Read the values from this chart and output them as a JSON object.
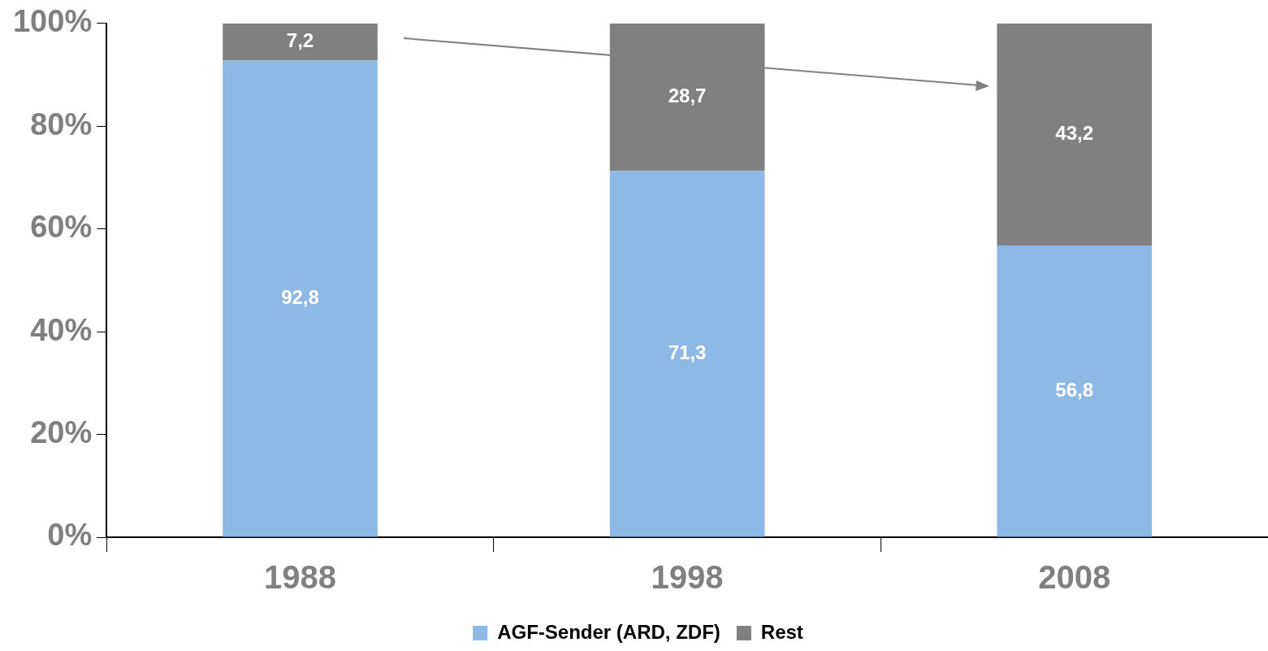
{
  "chart_data": {
    "type": "bar",
    "stacked": true,
    "categories": [
      "1988",
      "1998",
      "2008"
    ],
    "series": [
      {
        "name": "AGF-Sender (ARD, ZDF)",
        "color": "#8db9e4",
        "values": [
          92.8,
          71.3,
          56.8
        ],
        "value_labels": [
          "92,8",
          "71,3",
          "56,8"
        ]
      },
      {
        "name": "Rest",
        "color": "#808080",
        "values": [
          7.2,
          28.7,
          43.2
        ],
        "value_labels": [
          "7,2",
          "28,7",
          "43,2"
        ]
      }
    ],
    "ylim": [
      0,
      100
    ],
    "yticks": [
      {
        "value": 0,
        "label": "0%"
      },
      {
        "value": 20,
        "label": "20%"
      },
      {
        "value": 40,
        "label": "40%"
      },
      {
        "value": 60,
        "label": "60%"
      },
      {
        "value": 80,
        "label": "80%"
      },
      {
        "value": 100,
        "label": "100%"
      }
    ],
    "grid": false,
    "legend": "bottom"
  }
}
